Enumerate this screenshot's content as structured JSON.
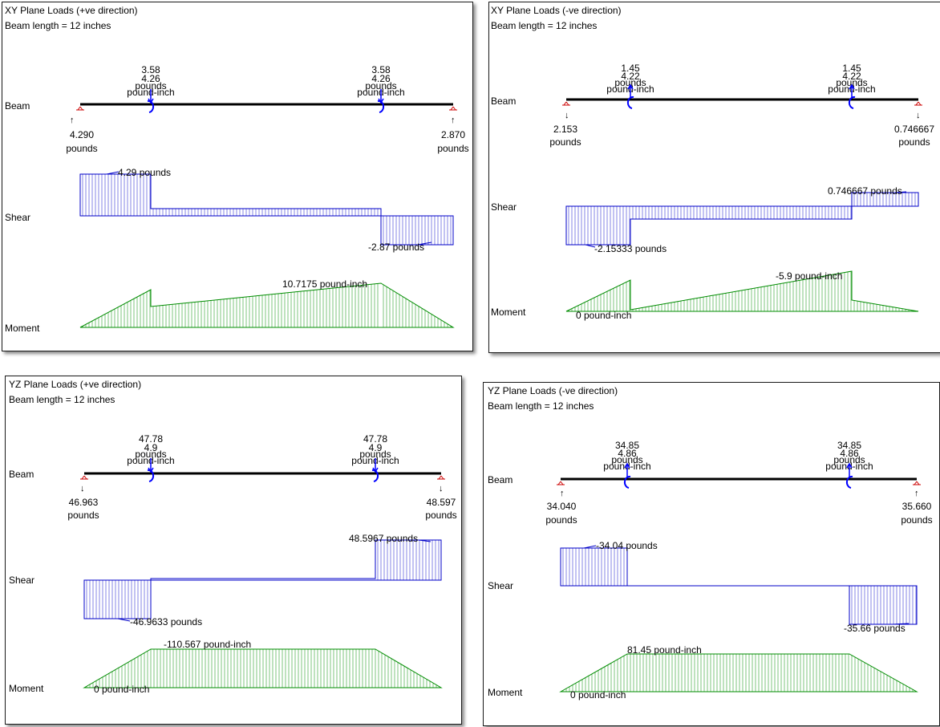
{
  "colors": {
    "beam": "#000000",
    "support": "#cc0000",
    "load": "#0000ff",
    "shear": "#0000c8",
    "moment": "#008c00",
    "frame": "#1a1a1a"
  },
  "icons": {
    "support": "pin-support-icon",
    "force": "arrow-down-icon",
    "moment": "curved-arrow-icon"
  },
  "labels": {
    "beam": "Beam",
    "shear": "Shear",
    "moment": "Moment"
  },
  "panels": [
    {
      "title": "XY Plane Loads (+ve direction)",
      "subtitle": "Beam length = 12 inches",
      "load_points": [
        {
          "force": "3.58",
          "moment": "4.26",
          "force_unit": "pounds",
          "moment_unit": "pound-inch"
        },
        {
          "force": "3.58",
          "moment": "4.26",
          "force_unit": "pounds",
          "moment_unit": "pound-inch"
        }
      ],
      "reactions": [
        {
          "arrow": "↑",
          "value": "4.290",
          "unit": "pounds"
        },
        {
          "arrow": "↑",
          "value": "2.870",
          "unit": "pounds"
        }
      ],
      "shear_labels": [
        "4.29 pounds",
        "-2.87 pounds"
      ],
      "moment_labels": [
        "10.7175 pound-inch"
      ]
    },
    {
      "title": "XY Plane Loads (-ve direction)",
      "subtitle": "Beam length = 12 inches",
      "load_points": [
        {
          "force": "1.45",
          "moment": "4.22",
          "force_unit": "pounds",
          "moment_unit": "pound-inch"
        },
        {
          "force": "1.45",
          "moment": "4.22",
          "force_unit": "pounds",
          "moment_unit": "pound-inch"
        }
      ],
      "reactions": [
        {
          "arrow": "↓",
          "value": "2.153",
          "unit": "pounds"
        },
        {
          "arrow": "↓",
          "value": "0.746667",
          "unit": "pounds"
        }
      ],
      "shear_labels": [
        "0.746667 pounds",
        "-2.15333 pounds"
      ],
      "moment_labels": [
        "-5.9 pound-inch",
        "0 pound-inch"
      ]
    },
    {
      "title": "YZ Plane Loads (+ve direction)",
      "subtitle": "Beam length = 12 inches",
      "load_points": [
        {
          "force": "47.78",
          "moment": "4.9",
          "force_unit": "pounds",
          "moment_unit": "pound-inch"
        },
        {
          "force": "47.78",
          "moment": "4.9",
          "force_unit": "pounds",
          "moment_unit": "pound-inch"
        }
      ],
      "reactions": [
        {
          "arrow": "↓",
          "value": "46.963",
          "unit": "pounds"
        },
        {
          "arrow": "↓",
          "value": "48.597",
          "unit": "pounds"
        }
      ],
      "shear_labels": [
        "48.5967 pounds",
        "-46.9633 pounds"
      ],
      "moment_labels": [
        "-110.567 pound-inch",
        "0 pound-inch"
      ]
    },
    {
      "title": "YZ Plane Loads (-ve direction)",
      "subtitle": "Beam length = 12 inches",
      "load_points": [
        {
          "force": "34.85",
          "moment": "4.86",
          "force_unit": "pounds",
          "moment_unit": "pound-inch"
        },
        {
          "force": "34.85",
          "moment": "4.86",
          "force_unit": "pounds",
          "moment_unit": "pound-inch"
        }
      ],
      "reactions": [
        {
          "arrow": "↑",
          "value": "34.040",
          "unit": "pounds"
        },
        {
          "arrow": "↑",
          "value": "35.660",
          "unit": "pounds"
        }
      ],
      "shear_labels": [
        "-34.04 pounds",
        "-35.66 pounds"
      ],
      "moment_labels": [
        "81.45 pound-inch",
        "0 pound-inch"
      ]
    }
  ]
}
